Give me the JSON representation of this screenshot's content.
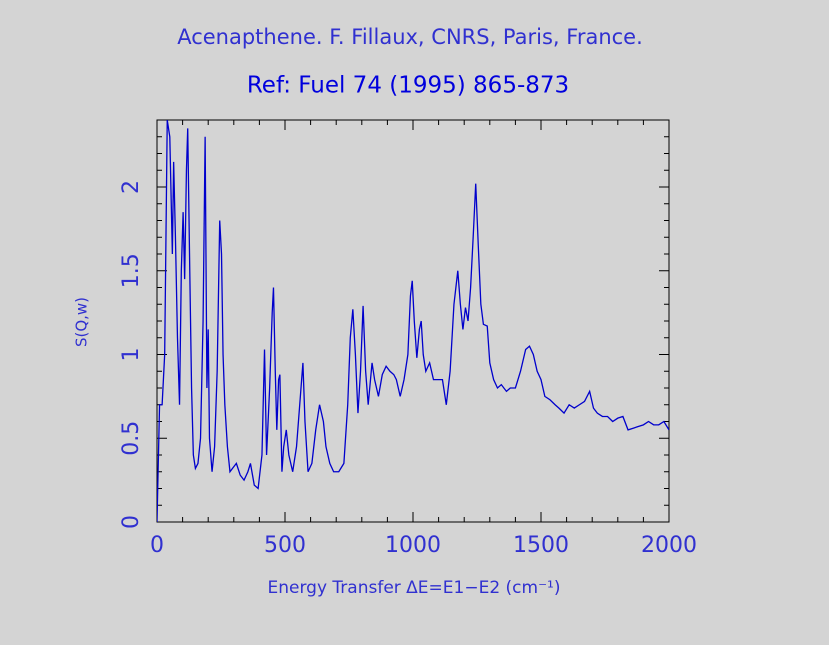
{
  "chart_data": {
    "type": "line",
    "title": "Acenapthene. F. Fillaux, CNRS, Paris, France.",
    "subtitle": "Ref: Fuel 74 (1995) 865-873",
    "xlabel": "Energy Transfer ΔE=E1−E2 (cm⁻¹)",
    "ylabel": "S(Q,w)",
    "color": "#0000cc",
    "xlim": [
      0,
      2000
    ],
    "ylim": [
      0,
      2.4
    ],
    "xticks": [
      0,
      500,
      1000,
      1500,
      2000
    ],
    "yticks": [
      0,
      0.5,
      1,
      1.5,
      2
    ],
    "xminorticks": [
      100,
      200,
      300,
      400,
      600,
      700,
      800,
      900,
      1100,
      1200,
      1300,
      1400,
      1600,
      1700,
      1800,
      1900
    ],
    "yminorticks": [
      0.1,
      0.2,
      0.3,
      0.4,
      0.6,
      0.7,
      0.8,
      0.9,
      1.1,
      1.2,
      1.3,
      1.4,
      1.6,
      1.7,
      1.8,
      1.9,
      2.1,
      2.2,
      2.3
    ],
    "x": [
      0,
      10,
      20,
      30,
      40,
      50,
      60,
      65,
      72,
      80,
      88,
      95,
      102,
      108,
      115,
      120,
      128,
      135,
      142,
      150,
      160,
      170,
      180,
      188,
      195,
      200,
      205,
      215,
      225,
      235,
      245,
      252,
      258,
      265,
      275,
      285,
      295,
      310,
      325,
      340,
      355,
      365,
      380,
      395,
      410,
      420,
      428,
      440,
      450,
      455,
      462,
      468,
      475,
      480,
      488,
      495,
      505,
      515,
      530,
      545,
      560,
      570,
      578,
      590,
      605,
      620,
      635,
      650,
      660,
      675,
      690,
      710,
      730,
      745,
      755,
      765,
      775,
      785,
      795,
      805,
      815,
      825,
      840,
      850,
      865,
      880,
      895,
      910,
      925,
      935,
      950,
      965,
      980,
      990,
      997,
      1005,
      1015,
      1025,
      1032,
      1040,
      1050,
      1065,
      1080,
      1100,
      1115,
      1130,
      1145,
      1160,
      1175,
      1185,
      1195,
      1205,
      1215,
      1225,
      1235,
      1245,
      1255,
      1265,
      1275,
      1290,
      1300,
      1315,
      1330,
      1345,
      1365,
      1380,
      1400,
      1420,
      1440,
      1455,
      1470,
      1485,
      1500,
      1515,
      1535,
      1555,
      1570,
      1590,
      1610,
      1630,
      1650,
      1670,
      1690,
      1705,
      1720,
      1740,
      1760,
      1780,
      1800,
      1820,
      1840,
      1860,
      1880,
      1900,
      1920,
      1940,
      1960,
      1980,
      2000
    ],
    "values": [
      0,
      0.7,
      0.7,
      1.0,
      2.4,
      2.3,
      1.6,
      2.15,
      1.7,
      1.1,
      0.7,
      1.5,
      1.85,
      1.45,
      2.1,
      2.35,
      1.5,
      0.8,
      0.4,
      0.32,
      0.35,
      0.5,
      1.2,
      2.3,
      0.8,
      1.15,
      0.5,
      0.3,
      0.45,
      0.9,
      1.8,
      1.6,
      1.0,
      0.7,
      0.45,
      0.3,
      0.32,
      0.35,
      0.28,
      0.25,
      0.3,
      0.35,
      0.22,
      0.2,
      0.4,
      1.03,
      0.4,
      0.8,
      1.25,
      1.4,
      0.9,
      0.55,
      0.85,
      0.88,
      0.3,
      0.45,
      0.55,
      0.4,
      0.3,
      0.45,
      0.75,
      0.95,
      0.6,
      0.3,
      0.35,
      0.55,
      0.7,
      0.6,
      0.45,
      0.35,
      0.3,
      0.3,
      0.35,
      0.7,
      1.1,
      1.27,
      1.0,
      0.65,
      0.9,
      1.29,
      0.9,
      0.7,
      0.95,
      0.85,
      0.75,
      0.88,
      0.93,
      0.9,
      0.88,
      0.85,
      0.75,
      0.85,
      1.0,
      1.35,
      1.44,
      1.2,
      0.98,
      1.15,
      1.2,
      1.0,
      0.9,
      0.95,
      0.85,
      0.85,
      0.85,
      0.7,
      0.9,
      1.3,
      1.5,
      1.3,
      1.15,
      1.28,
      1.2,
      1.4,
      1.7,
      2.02,
      1.65,
      1.3,
      1.18,
      1.17,
      0.95,
      0.85,
      0.8,
      0.82,
      0.78,
      0.8,
      0.8,
      0.9,
      1.03,
      1.05,
      1.0,
      0.9,
      0.85,
      0.75,
      0.73,
      0.7,
      0.68,
      0.65,
      0.7,
      0.68,
      0.7,
      0.72,
      0.78,
      0.68,
      0.65,
      0.63,
      0.63,
      0.6,
      0.62,
      0.63,
      0.55,
      0.56,
      0.57,
      0.58,
      0.6,
      0.58,
      0.58,
      0.6,
      0.55
    ]
  }
}
